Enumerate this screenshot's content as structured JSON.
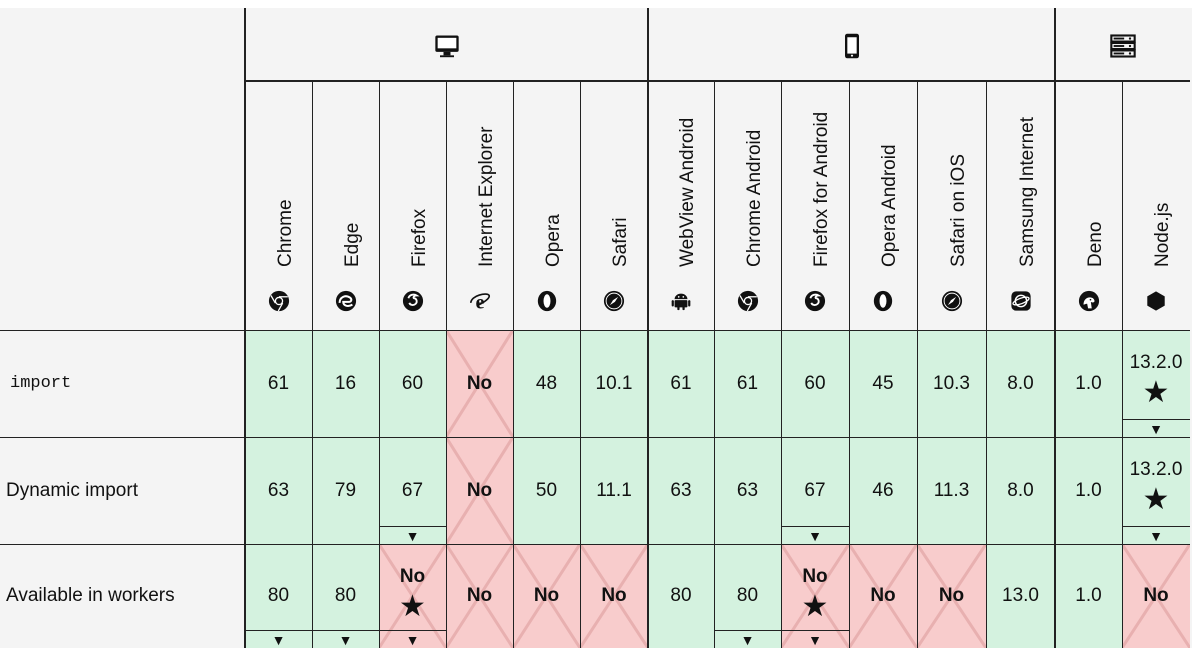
{
  "colors": {
    "supported": "#d4f2df",
    "unsupported": "#f8cccc",
    "header_bg": "#f4f4f4",
    "border": "#222222",
    "cross": "#e8b0b0"
  },
  "groups": [
    {
      "name": "desktop",
      "icon": "desktop-icon"
    },
    {
      "name": "mobile",
      "icon": "mobile-icon"
    },
    {
      "name": "server",
      "icon": "server-icon"
    }
  ],
  "browsers": [
    {
      "label": "Chrome",
      "icon": "chrome-icon"
    },
    {
      "label": "Edge",
      "icon": "edge-icon"
    },
    {
      "label": "Firefox",
      "icon": "firefox-icon"
    },
    {
      "label": "Internet Explorer",
      "icon": "ie-icon"
    },
    {
      "label": "Opera",
      "icon": "opera-icon"
    },
    {
      "label": "Safari",
      "icon": "safari-icon"
    },
    {
      "label": "WebView Android",
      "icon": "android-icon"
    },
    {
      "label": "Chrome Android",
      "icon": "chrome-icon"
    },
    {
      "label": "Firefox for Android",
      "icon": "firefox-icon"
    },
    {
      "label": "Opera Android",
      "icon": "opera-icon"
    },
    {
      "label": "Safari on iOS",
      "icon": "safari-icon"
    },
    {
      "label": "Samsung Internet",
      "icon": "samsung-icon"
    },
    {
      "label": "Deno",
      "icon": "deno-icon"
    },
    {
      "label": "Node.js",
      "icon": "nodejs-icon"
    }
  ],
  "rows": [
    {
      "feature": "import",
      "code": true,
      "cells": [
        {
          "v": "61",
          "s": "yes"
        },
        {
          "v": "16",
          "s": "yes"
        },
        {
          "v": "60",
          "s": "yes"
        },
        {
          "v": "No",
          "s": "no"
        },
        {
          "v": "48",
          "s": "yes"
        },
        {
          "v": "10.1",
          "s": "yes"
        },
        {
          "v": "61",
          "s": "yes"
        },
        {
          "v": "61",
          "s": "yes"
        },
        {
          "v": "60",
          "s": "yes"
        },
        {
          "v": "45",
          "s": "yes"
        },
        {
          "v": "10.3",
          "s": "yes"
        },
        {
          "v": "8.0",
          "s": "yes"
        },
        {
          "v": "1.0",
          "s": "yes"
        },
        {
          "v": "13.2.0",
          "s": "yes",
          "star": true,
          "drawer": true
        }
      ]
    },
    {
      "feature": "Dynamic import",
      "code": false,
      "cells": [
        {
          "v": "63",
          "s": "yes"
        },
        {
          "v": "79",
          "s": "yes"
        },
        {
          "v": "67",
          "s": "yes",
          "drawer": true
        },
        {
          "v": "No",
          "s": "no"
        },
        {
          "v": "50",
          "s": "yes"
        },
        {
          "v": "11.1",
          "s": "yes"
        },
        {
          "v": "63",
          "s": "yes"
        },
        {
          "v": "63",
          "s": "yes"
        },
        {
          "v": "67",
          "s": "yes",
          "drawer": true
        },
        {
          "v": "46",
          "s": "yes"
        },
        {
          "v": "11.3",
          "s": "yes"
        },
        {
          "v": "8.0",
          "s": "yes"
        },
        {
          "v": "1.0",
          "s": "yes"
        },
        {
          "v": "13.2.0",
          "s": "yes",
          "star": true,
          "drawer": true
        }
      ]
    },
    {
      "feature": "Available in workers",
      "code": false,
      "cells": [
        {
          "v": "80",
          "s": "yes",
          "drawer": true
        },
        {
          "v": "80",
          "s": "yes",
          "drawer": true
        },
        {
          "v": "No",
          "s": "no",
          "star": true,
          "drawer": true
        },
        {
          "v": "No",
          "s": "no"
        },
        {
          "v": "No",
          "s": "no"
        },
        {
          "v": "No",
          "s": "no"
        },
        {
          "v": "80",
          "s": "yes"
        },
        {
          "v": "80",
          "s": "yes",
          "drawer": true
        },
        {
          "v": "No",
          "s": "no",
          "star": true,
          "drawer": true
        },
        {
          "v": "No",
          "s": "no"
        },
        {
          "v": "No",
          "s": "no"
        },
        {
          "v": "13.0",
          "s": "yes"
        },
        {
          "v": "1.0",
          "s": "yes"
        },
        {
          "v": "No",
          "s": "no"
        }
      ]
    }
  ]
}
